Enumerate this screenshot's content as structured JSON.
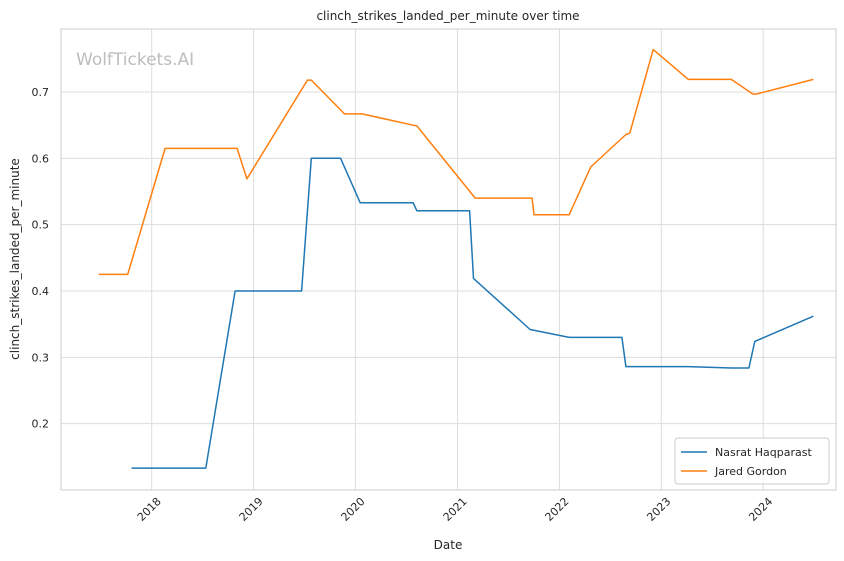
{
  "chart_data": {
    "type": "line",
    "title": "clinch_strikes_landed_per_minute over time",
    "xlabel": "Date",
    "ylabel": "clinch_strikes_landed_per_minute",
    "watermark": "WolfTickets.AI",
    "xlim": [
      "2017-02-10",
      "2024-09-18"
    ],
    "ylim": [
      0.1,
      0.795
    ],
    "x_ticks": [
      "2018-01-01",
      "2019-01-01",
      "2020-01-01",
      "2021-01-01",
      "2022-01-01",
      "2023-01-01",
      "2024-01-01"
    ],
    "x_tick_labels": [
      "2018",
      "2019",
      "2020",
      "2021",
      "2022",
      "2023",
      "2024"
    ],
    "y_ticks": [
      0.2,
      0.3,
      0.4,
      0.5,
      0.6,
      0.7
    ],
    "y_tick_labels": [
      "0.2",
      "0.3",
      "0.4",
      "0.5",
      "0.6",
      "0.7"
    ],
    "grid": true,
    "legend_position": "lower-right",
    "series": [
      {
        "name": "Nasrat Haqparast",
        "color": "#1f77b4",
        "x": [
          "2017-10-21",
          "2018-07-14",
          "2018-10-27",
          "2019-06-22",
          "2019-07-27",
          "2019-11-09",
          "2020-01-18",
          "2020-07-26",
          "2020-08-08",
          "2021-02-13",
          "2021-02-27",
          "2021-09-18",
          "2022-02-05",
          "2022-08-13",
          "2022-08-27",
          "2023-04-08",
          "2023-09-09",
          "2023-11-11",
          "2023-12-02",
          "2024-06-29"
        ],
        "y": [
          0.133,
          0.133,
          0.4,
          0.4,
          0.6,
          0.6,
          0.533,
          0.533,
          0.521,
          0.521,
          0.419,
          0.342,
          0.33,
          0.33,
          0.286,
          0.286,
          0.284,
          0.284,
          0.324,
          0.362
        ]
      },
      {
        "name": "Jared Gordon",
        "color": "#ff7f0e",
        "x": [
          "2017-06-25",
          "2017-10-07",
          "2018-02-18",
          "2018-11-03",
          "2018-12-08",
          "2019-07-13",
          "2019-07-27",
          "2019-11-23",
          "2020-01-25",
          "2020-07-26",
          "2020-08-08",
          "2021-03-05",
          "2021-09-25",
          "2021-10-02",
          "2022-02-05",
          "2022-04-23",
          "2022-08-27",
          "2022-09-10",
          "2022-12-03",
          "2023-04-08",
          "2023-09-09",
          "2023-11-25",
          "2023-12-09",
          "2024-06-29"
        ],
        "y": [
          0.425,
          0.425,
          0.615,
          0.615,
          0.569,
          0.718,
          0.718,
          0.667,
          0.667,
          0.65,
          0.649,
          0.54,
          0.54,
          0.515,
          0.515,
          0.587,
          0.636,
          0.638,
          0.764,
          0.719,
          0.719,
          0.697,
          0.697,
          0.719
        ]
      }
    ]
  }
}
